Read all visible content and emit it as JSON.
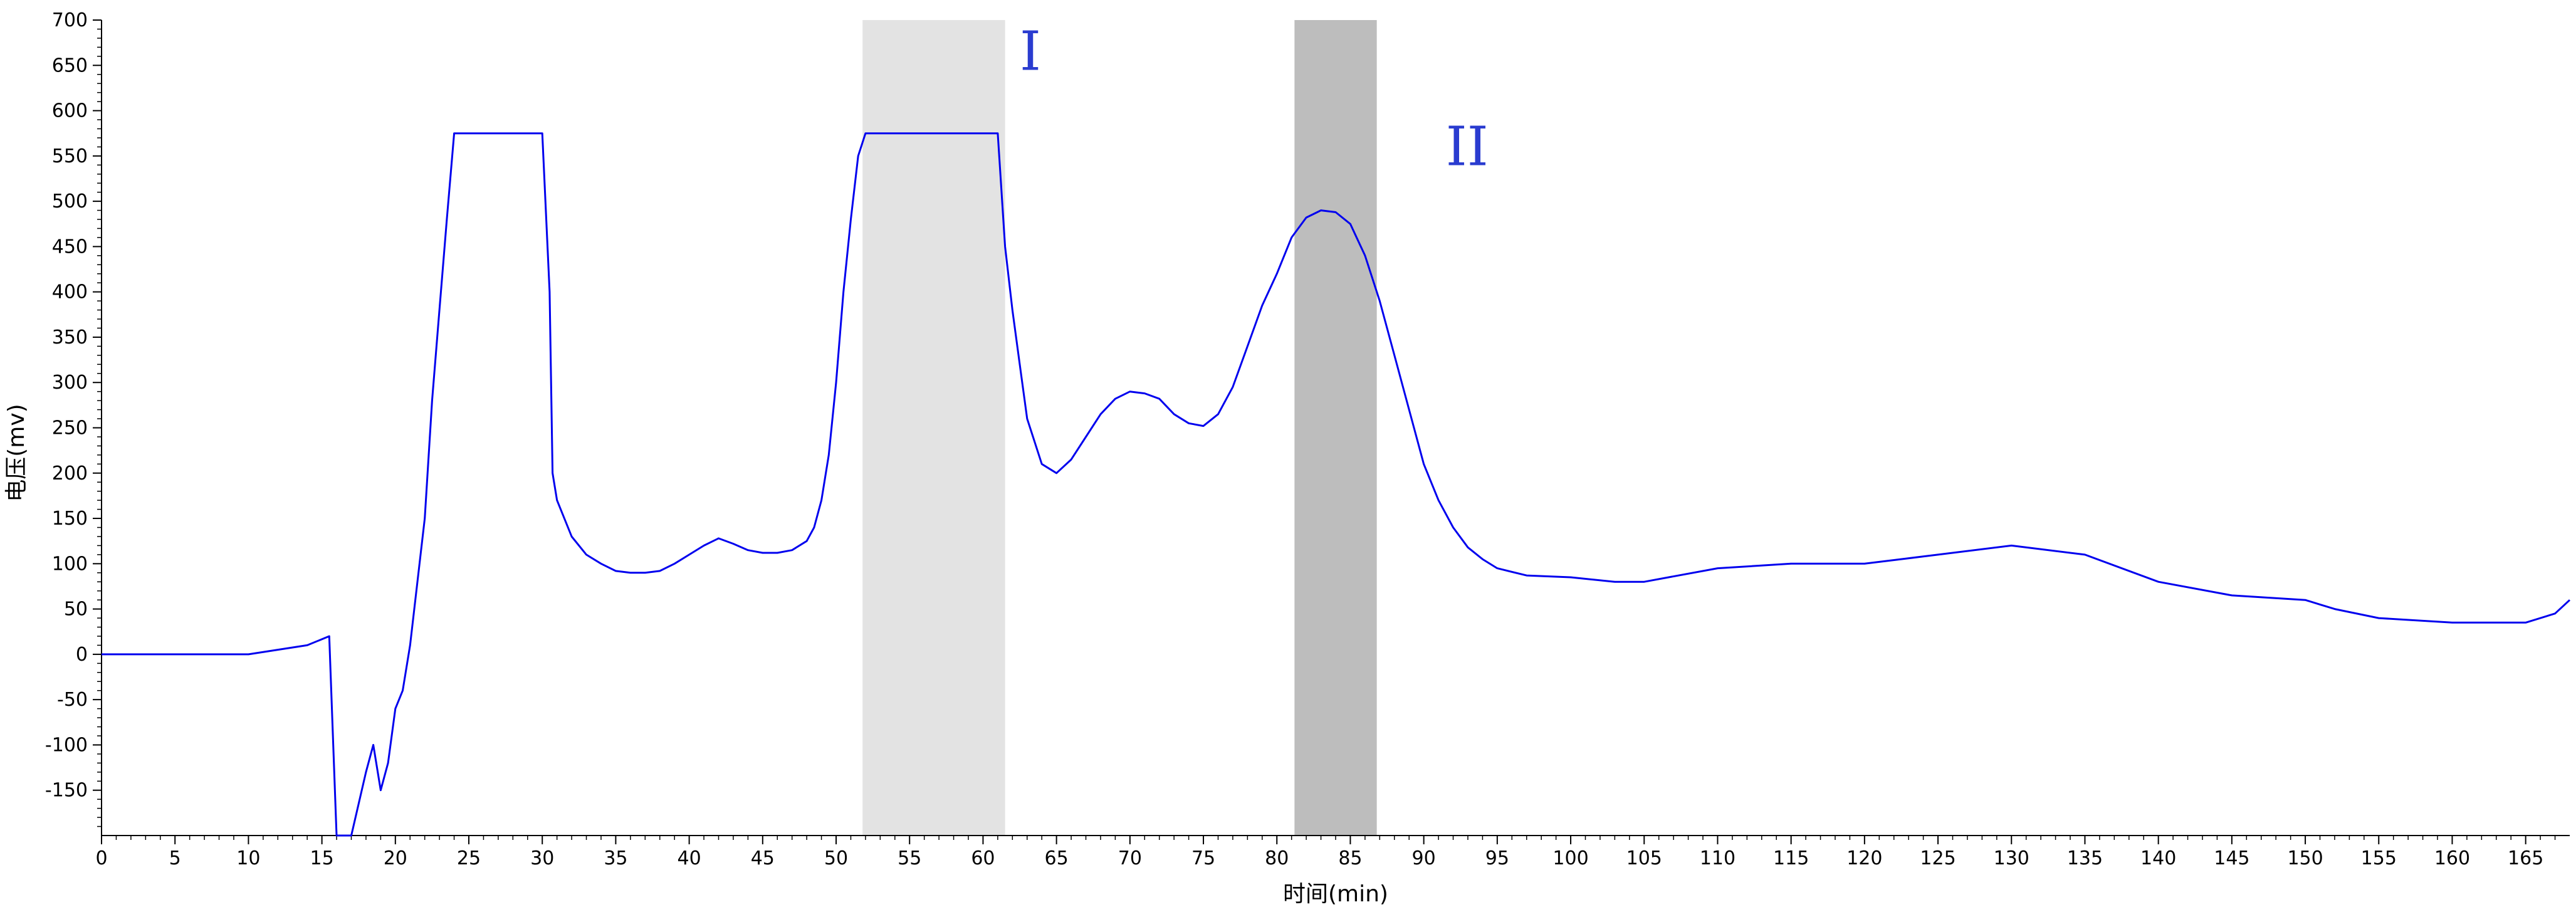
{
  "chart_data": {
    "type": "line",
    "title": "",
    "xlabel": "时间(min)",
    "ylabel": "电压(mv)",
    "xlim": [
      0,
      168
    ],
    "ylim": [
      -200,
      700
    ],
    "x_ticks": [
      0,
      5,
      10,
      15,
      20,
      25,
      30,
      35,
      40,
      45,
      50,
      55,
      60,
      65,
      70,
      75,
      80,
      85,
      90,
      95,
      100,
      105,
      110,
      115,
      120,
      125,
      130,
      135,
      140,
      145,
      150,
      155,
      160,
      165
    ],
    "y_ticks": [
      -150,
      -100,
      -50,
      0,
      50,
      100,
      150,
      200,
      250,
      300,
      350,
      400,
      450,
      500,
      550,
      600,
      650,
      700
    ],
    "grid": false,
    "line_color": "#0000ee",
    "series": [
      {
        "x": [
          0,
          5,
          10,
          14,
          15.5,
          16,
          17,
          18,
          18.5,
          19,
          19.5,
          20,
          20.5,
          21,
          21.5,
          22,
          22.5,
          23,
          23.5,
          24,
          25,
          30,
          30.5,
          30.7,
          31,
          32,
          33,
          34,
          35,
          36,
          37,
          38,
          39,
          40,
          41,
          42,
          43,
          44,
          45,
          46,
          47,
          48,
          48.5,
          49,
          49.5,
          50,
          50.5,
          51,
          51.5,
          52,
          55,
          61,
          61.5,
          62,
          62.5,
          63,
          64,
          65,
          66,
          67,
          68,
          69,
          70,
          71,
          72,
          73,
          74,
          75,
          76,
          77,
          78,
          79,
          80,
          81,
          82,
          83,
          84,
          85,
          86,
          87,
          88,
          89,
          90,
          91,
          92,
          93,
          94,
          95,
          97,
          100,
          103,
          105,
          110,
          115,
          120,
          125,
          130,
          135,
          140,
          145,
          150,
          151,
          152,
          155,
          160,
          165,
          167,
          168
        ],
        "y": [
          0,
          0,
          0,
          10,
          20,
          -200,
          -200,
          -130,
          -100,
          -150,
          -120,
          -60,
          -40,
          10,
          80,
          150,
          280,
          380,
          480,
          575,
          575,
          575,
          400,
          200,
          170,
          130,
          110,
          100,
          92,
          90,
          90,
          92,
          100,
          110,
          120,
          128,
          122,
          115,
          112,
          112,
          115,
          125,
          140,
          170,
          220,
          300,
          400,
          480,
          550,
          575,
          575,
          575,
          450,
          380,
          320,
          260,
          210,
          200,
          215,
          240,
          265,
          282,
          290,
          288,
          282,
          265,
          255,
          252,
          265,
          295,
          340,
          385,
          420,
          460,
          482,
          490,
          488,
          475,
          440,
          390,
          330,
          270,
          210,
          170,
          140,
          118,
          105,
          95,
          87,
          85,
          80,
          80,
          95,
          100,
          100,
          110,
          120,
          110,
          80,
          65,
          60,
          55,
          50,
          40,
          35,
          35,
          45,
          60
        ]
      }
    ],
    "shaded_regions": [
      {
        "x_start": 51.8,
        "x_end": 61.5,
        "color": "#e3e3e3"
      },
      {
        "x_start": 81.2,
        "x_end": 86.8,
        "color": "#bdbdbd"
      }
    ],
    "annotations": [
      {
        "text": "I",
        "x": 62.5,
        "y": 645
      },
      {
        "text": "II",
        "x": 91.5,
        "y": 540
      }
    ]
  }
}
